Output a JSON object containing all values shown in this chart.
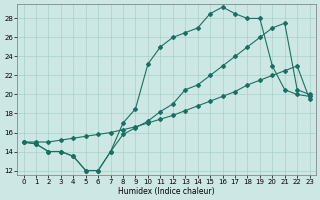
{
  "xlabel": "Humidex (Indice chaleur)",
  "xlim": [
    -0.5,
    23.5
  ],
  "ylim": [
    11.5,
    29.5
  ],
  "yticks": [
    12,
    14,
    16,
    18,
    20,
    22,
    24,
    26,
    28
  ],
  "xticks": [
    0,
    1,
    2,
    3,
    4,
    5,
    6,
    7,
    8,
    9,
    10,
    11,
    12,
    13,
    14,
    15,
    16,
    17,
    18,
    19,
    20,
    21,
    22,
    23
  ],
  "bg_color": "#cde8e4",
  "line_color": "#1a7060",
  "line1_x": [
    0,
    1,
    2,
    3,
    4,
    5,
    6,
    7,
    8,
    9,
    10,
    11,
    12,
    13,
    14,
    15,
    16,
    17,
    18,
    19,
    20,
    21,
    22,
    23
  ],
  "line1_y": [
    15,
    14.8,
    14,
    14,
    13.5,
    12,
    12,
    14,
    15.8,
    16.5,
    17.2,
    18.2,
    19,
    20.5,
    21,
    22,
    23,
    24,
    25,
    26,
    27,
    27.5,
    20.5,
    20
  ],
  "line2_x": [
    0,
    1,
    2,
    3,
    4,
    5,
    6,
    7,
    8,
    9,
    10,
    11,
    12,
    13,
    14,
    15,
    16,
    17,
    18,
    19,
    20,
    21,
    22,
    23
  ],
  "line2_y": [
    15,
    15,
    15,
    15.2,
    15.4,
    15.6,
    15.8,
    16,
    16.3,
    16.6,
    17,
    17.4,
    17.8,
    18.3,
    18.8,
    19.3,
    19.8,
    20.3,
    21,
    21.5,
    22,
    22.5,
    23,
    19.5
  ],
  "line3_x": [
    0,
    1,
    2,
    3,
    4,
    5,
    6,
    7,
    8,
    9,
    10,
    11,
    12,
    13,
    14,
    15,
    16,
    17,
    18,
    19,
    20,
    21,
    22,
    23
  ],
  "line3_y": [
    15,
    14.8,
    14,
    14,
    13.5,
    12,
    12,
    14,
    17,
    18.5,
    23.2,
    25,
    26,
    26.5,
    27,
    28.5,
    29.2,
    28.5,
    28,
    28,
    23,
    20.5,
    20,
    19.8
  ]
}
